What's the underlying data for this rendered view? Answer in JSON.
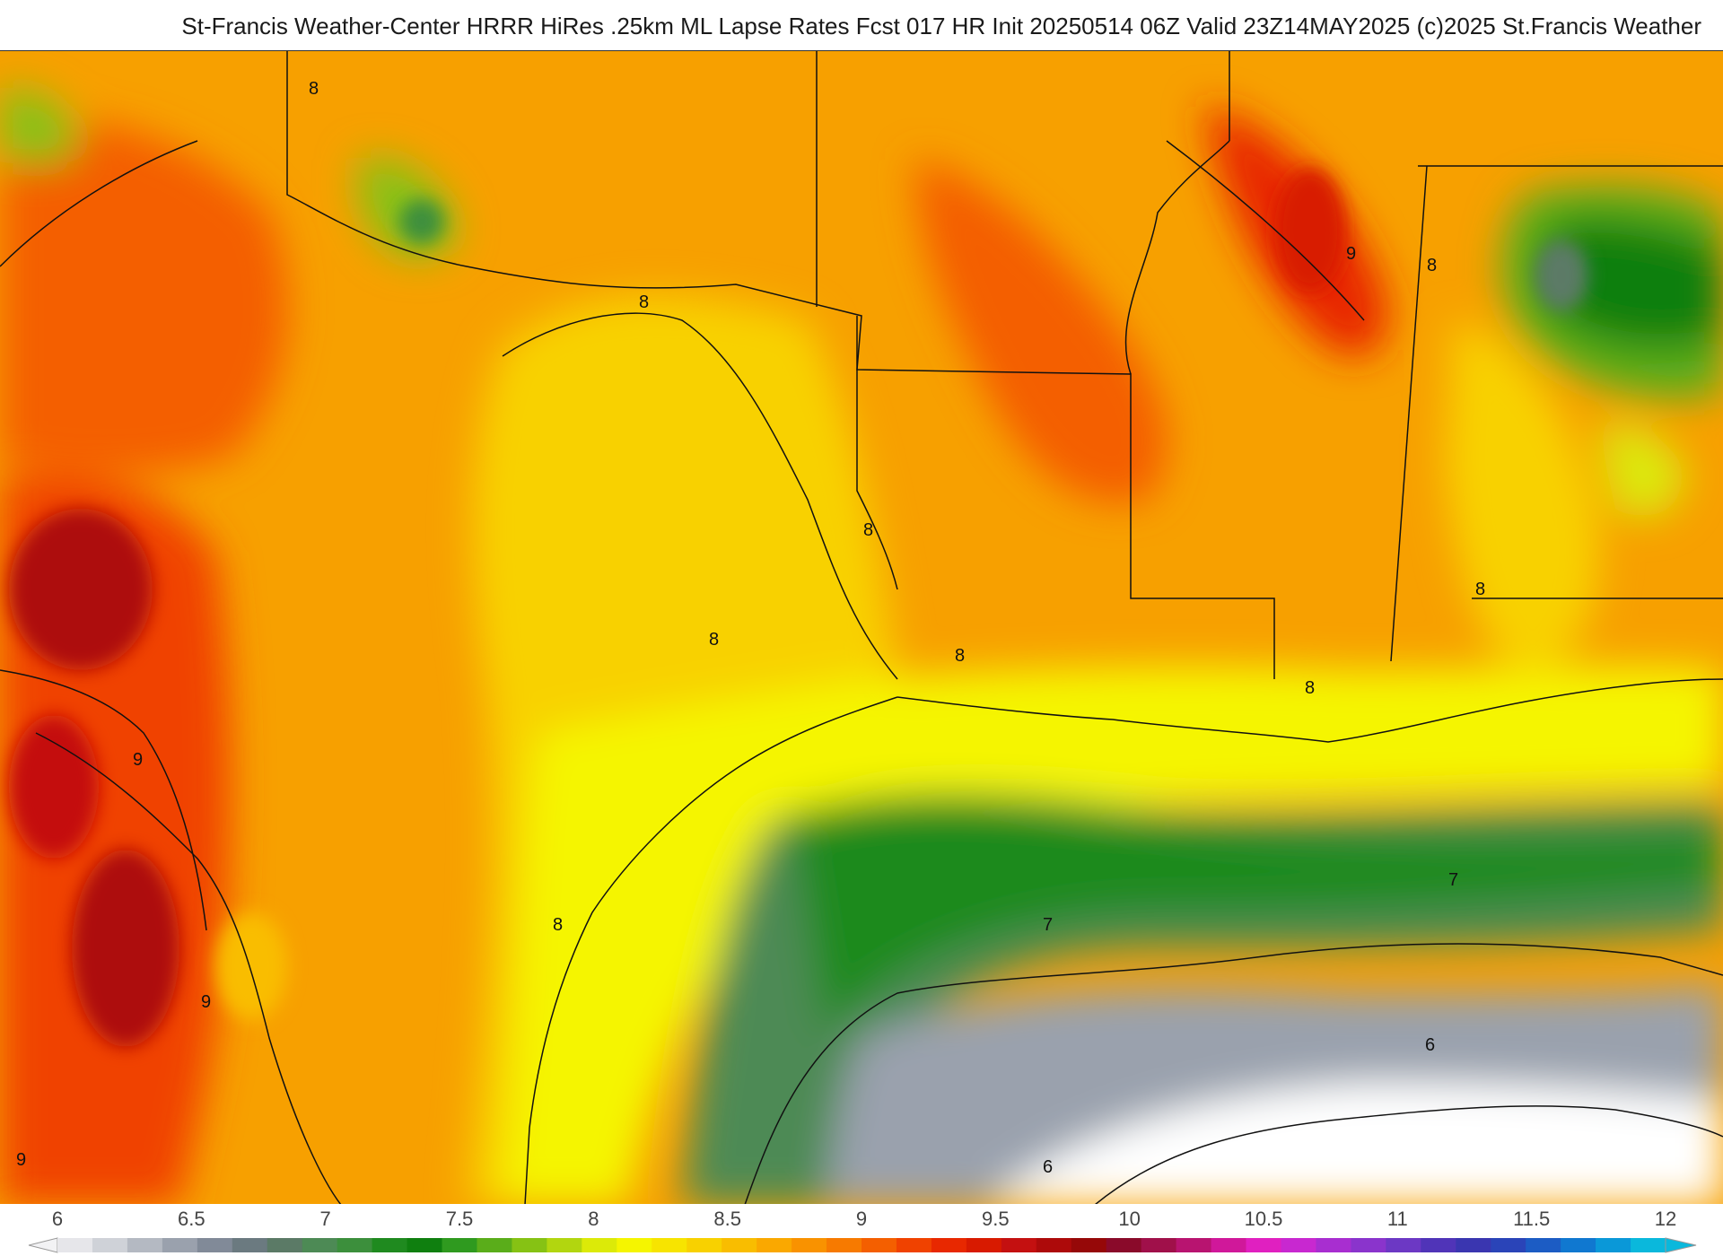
{
  "header": {
    "title": "St-Francis Weather-Center HRRR HiRes .25km ML Lapse Rates  Fcst 017 HR Init 20250514 06Z  Valid 23Z14MAY2025    (c)2025 St.Francis Weather"
  },
  "map": {
    "field": "ML Lapse Rates",
    "contour_labels": [
      "8",
      "8",
      "9",
      "8",
      "8",
      "8",
      "8",
      "8",
      "8",
      "9",
      "9",
      "8",
      "7",
      "7",
      "9",
      "6",
      "6"
    ]
  },
  "colorbar": {
    "ticks": [
      "6",
      "6.5",
      "7",
      "7.5",
      "8",
      "8.5",
      "9",
      "9.5",
      "10",
      "10.5",
      "11",
      "11.5",
      "12"
    ],
    "colors": [
      "#e6e6ea",
      "#cfd2d8",
      "#b4b9c2",
      "#9aa1ad",
      "#818a98",
      "#6b7a80",
      "#5b7a66",
      "#4d8a55",
      "#3c8f3c",
      "#1f8a1f",
      "#0f7f0f",
      "#2f9a1f",
      "#5aad1a",
      "#86c214",
      "#b2d60f",
      "#dcea08",
      "#f5f500",
      "#f7e400",
      "#f8d100",
      "#f9bd00",
      "#faa800",
      "#f99200",
      "#f77a00",
      "#f45f00",
      "#f04200",
      "#e82800",
      "#d81a00",
      "#c41010",
      "#ad0a0a",
      "#960808",
      "#8a0a2a",
      "#a0104a",
      "#b81470",
      "#d0189a",
      "#e020c0",
      "#c828d0",
      "#a82ed0",
      "#8a34cc",
      "#6c38c4",
      "#5034b8",
      "#3a36b0",
      "#2a44b8",
      "#1c5cc4",
      "#1078d0",
      "#0a98d8",
      "#0ab8dc"
    ]
  }
}
